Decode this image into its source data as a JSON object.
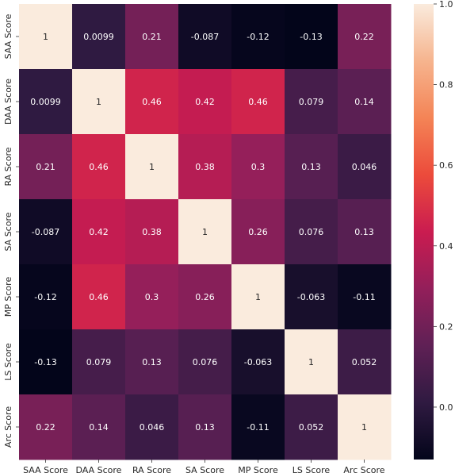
{
  "chart_data": {
    "type": "heatmap",
    "title": "",
    "xlabel": "",
    "ylabel": "",
    "row_labels": [
      "SAA Score",
      "DAA Score",
      "RA Score",
      "SA Score",
      "MP Score",
      "LS Score",
      "Arc Score"
    ],
    "col_labels": [
      "SAA Score",
      "DAA Score",
      "RA Score",
      "SA Score",
      "MP Score",
      "LS Score",
      "Arc Score"
    ],
    "values": [
      [
        1,
        0.0099,
        0.21,
        -0.087,
        -0.12,
        -0.13,
        0.22
      ],
      [
        0.0099,
        1,
        0.46,
        0.42,
        0.46,
        0.079,
        0.14
      ],
      [
        0.21,
        0.46,
        1,
        0.38,
        0.3,
        0.13,
        0.046
      ],
      [
        -0.087,
        0.42,
        0.38,
        1,
        0.26,
        0.076,
        0.13
      ],
      [
        -0.12,
        0.46,
        0.3,
        0.26,
        1,
        -0.063,
        -0.11
      ],
      [
        -0.13,
        0.079,
        0.13,
        0.076,
        -0.063,
        1,
        0.052
      ],
      [
        0.22,
        0.14,
        0.046,
        0.13,
        -0.11,
        0.052,
        1
      ]
    ],
    "cell_labels": [
      [
        "1",
        "0.0099",
        "0.21",
        "-0.087",
        "-0.12",
        "-0.13",
        "0.22"
      ],
      [
        "0.0099",
        "1",
        "0.46",
        "0.42",
        "0.46",
        "0.079",
        "0.14"
      ],
      [
        "0.21",
        "0.46",
        "1",
        "0.38",
        "0.3",
        "0.13",
        "0.046"
      ],
      [
        "-0.087",
        "0.42",
        "0.38",
        "1",
        "0.26",
        "0.076",
        "0.13"
      ],
      [
        "-0.12",
        "0.46",
        "0.3",
        "0.26",
        "1",
        "-0.063",
        "-0.11"
      ],
      [
        "-0.13",
        "0.079",
        "0.13",
        "0.076",
        "-0.063",
        "1",
        "0.052"
      ],
      [
        "0.22",
        "0.14",
        "0.046",
        "0.13",
        "-0.11",
        "0.052",
        "1"
      ]
    ],
    "colorbar": {
      "range": [
        -0.13,
        1.0
      ],
      "ticks": [
        0.0,
        0.2,
        0.4,
        0.6,
        0.8,
        1.0
      ],
      "tick_labels": [
        "0.0",
        "0.2",
        "0.4",
        "0.6",
        "0.8",
        "1.0"
      ]
    },
    "colormap": "rocket",
    "colormap_stops": [
      "#03051a",
      "#2f1a41",
      "#5f2055",
      "#931f5a",
      "#ca1c50",
      "#ec4b3b",
      "#f48456",
      "#f6b48e",
      "#faebdd"
    ],
    "grid": false,
    "legend": "colorbar-right"
  }
}
